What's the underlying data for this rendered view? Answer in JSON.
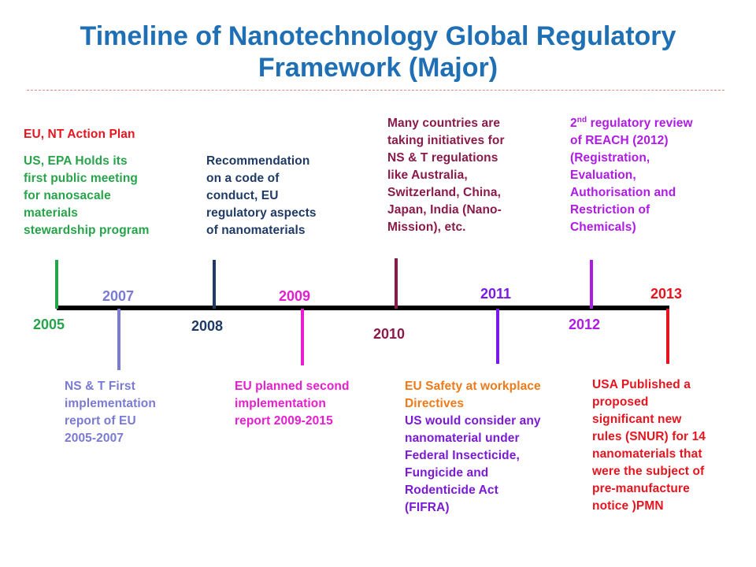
{
  "title": {
    "line1": "Timeline of Nanotechnology Global Regulatory",
    "line2": "Framework (Major)"
  },
  "colors": {
    "title": "#1f6fb5",
    "y2005": "#27a34a",
    "y2007": "#7a7ad4",
    "y2008": "#1f3a66",
    "y2009": "#e61ecf",
    "y2010": "#8a1a4a",
    "y2011": "#7a1ae6",
    "y2012": "#b01ae6",
    "y2013": "#e6141e",
    "eu_plan": "#e6141e",
    "eu_safety": "#ee7a1a",
    "us_fifra": "#7a1ad4"
  },
  "years": {
    "y2005": "2005",
    "y2007": "2007",
    "y2008": "2008",
    "y2009": "2009",
    "y2010": "2010",
    "y2011": "2011",
    "y2012": "2012",
    "y2013": "2013"
  },
  "events": {
    "eu_nt_action_plan": "EU, NT Action Plan",
    "us_epa": [
      "US, EPA Holds its",
      "first public meeting",
      "for nanosacale",
      "materials",
      "stewardship program"
    ],
    "recommendation": [
      "Recommendation",
      "on a code of",
      "conduct, EU",
      "regulatory aspects",
      "of nanomaterials"
    ],
    "many_countries": [
      "Many countries are",
      "taking initiatives for",
      "NS & T regulations",
      "like Australia,",
      "Switzerland, China,",
      "Japan, India (Nano-",
      "Mission), etc."
    ],
    "reach_review": {
      "first_prefix": "2",
      "first_sup": "nd",
      "first_rest": " regulatory review",
      "lines": [
        "of REACH (2012)",
        "(Registration,",
        "Evaluation,",
        "Authorisation and",
        "Restriction of",
        "Chemicals)"
      ]
    },
    "ns_t_first": [
      "NS & T First",
      "implementation",
      "report of EU",
      "2005-2007"
    ],
    "eu_second": [
      "EU planned second",
      "implementation",
      "report 2009-2015"
    ],
    "eu_safety": [
      "EU Safety at workplace",
      "Directives"
    ],
    "us_fifra": [
      "US would consider any",
      "nanomaterial under",
      "Federal Insecticide,",
      "Fungicide and",
      "Rodenticide Act",
      "(FIFRA)"
    ],
    "usa_snur": [
      "USA Published a",
      "proposed",
      "significant new",
      "rules (SNUR) for 14",
      "nanomaterials that",
      "were the subject of",
      "pre-manufacture",
      "notice )PMN"
    ]
  }
}
